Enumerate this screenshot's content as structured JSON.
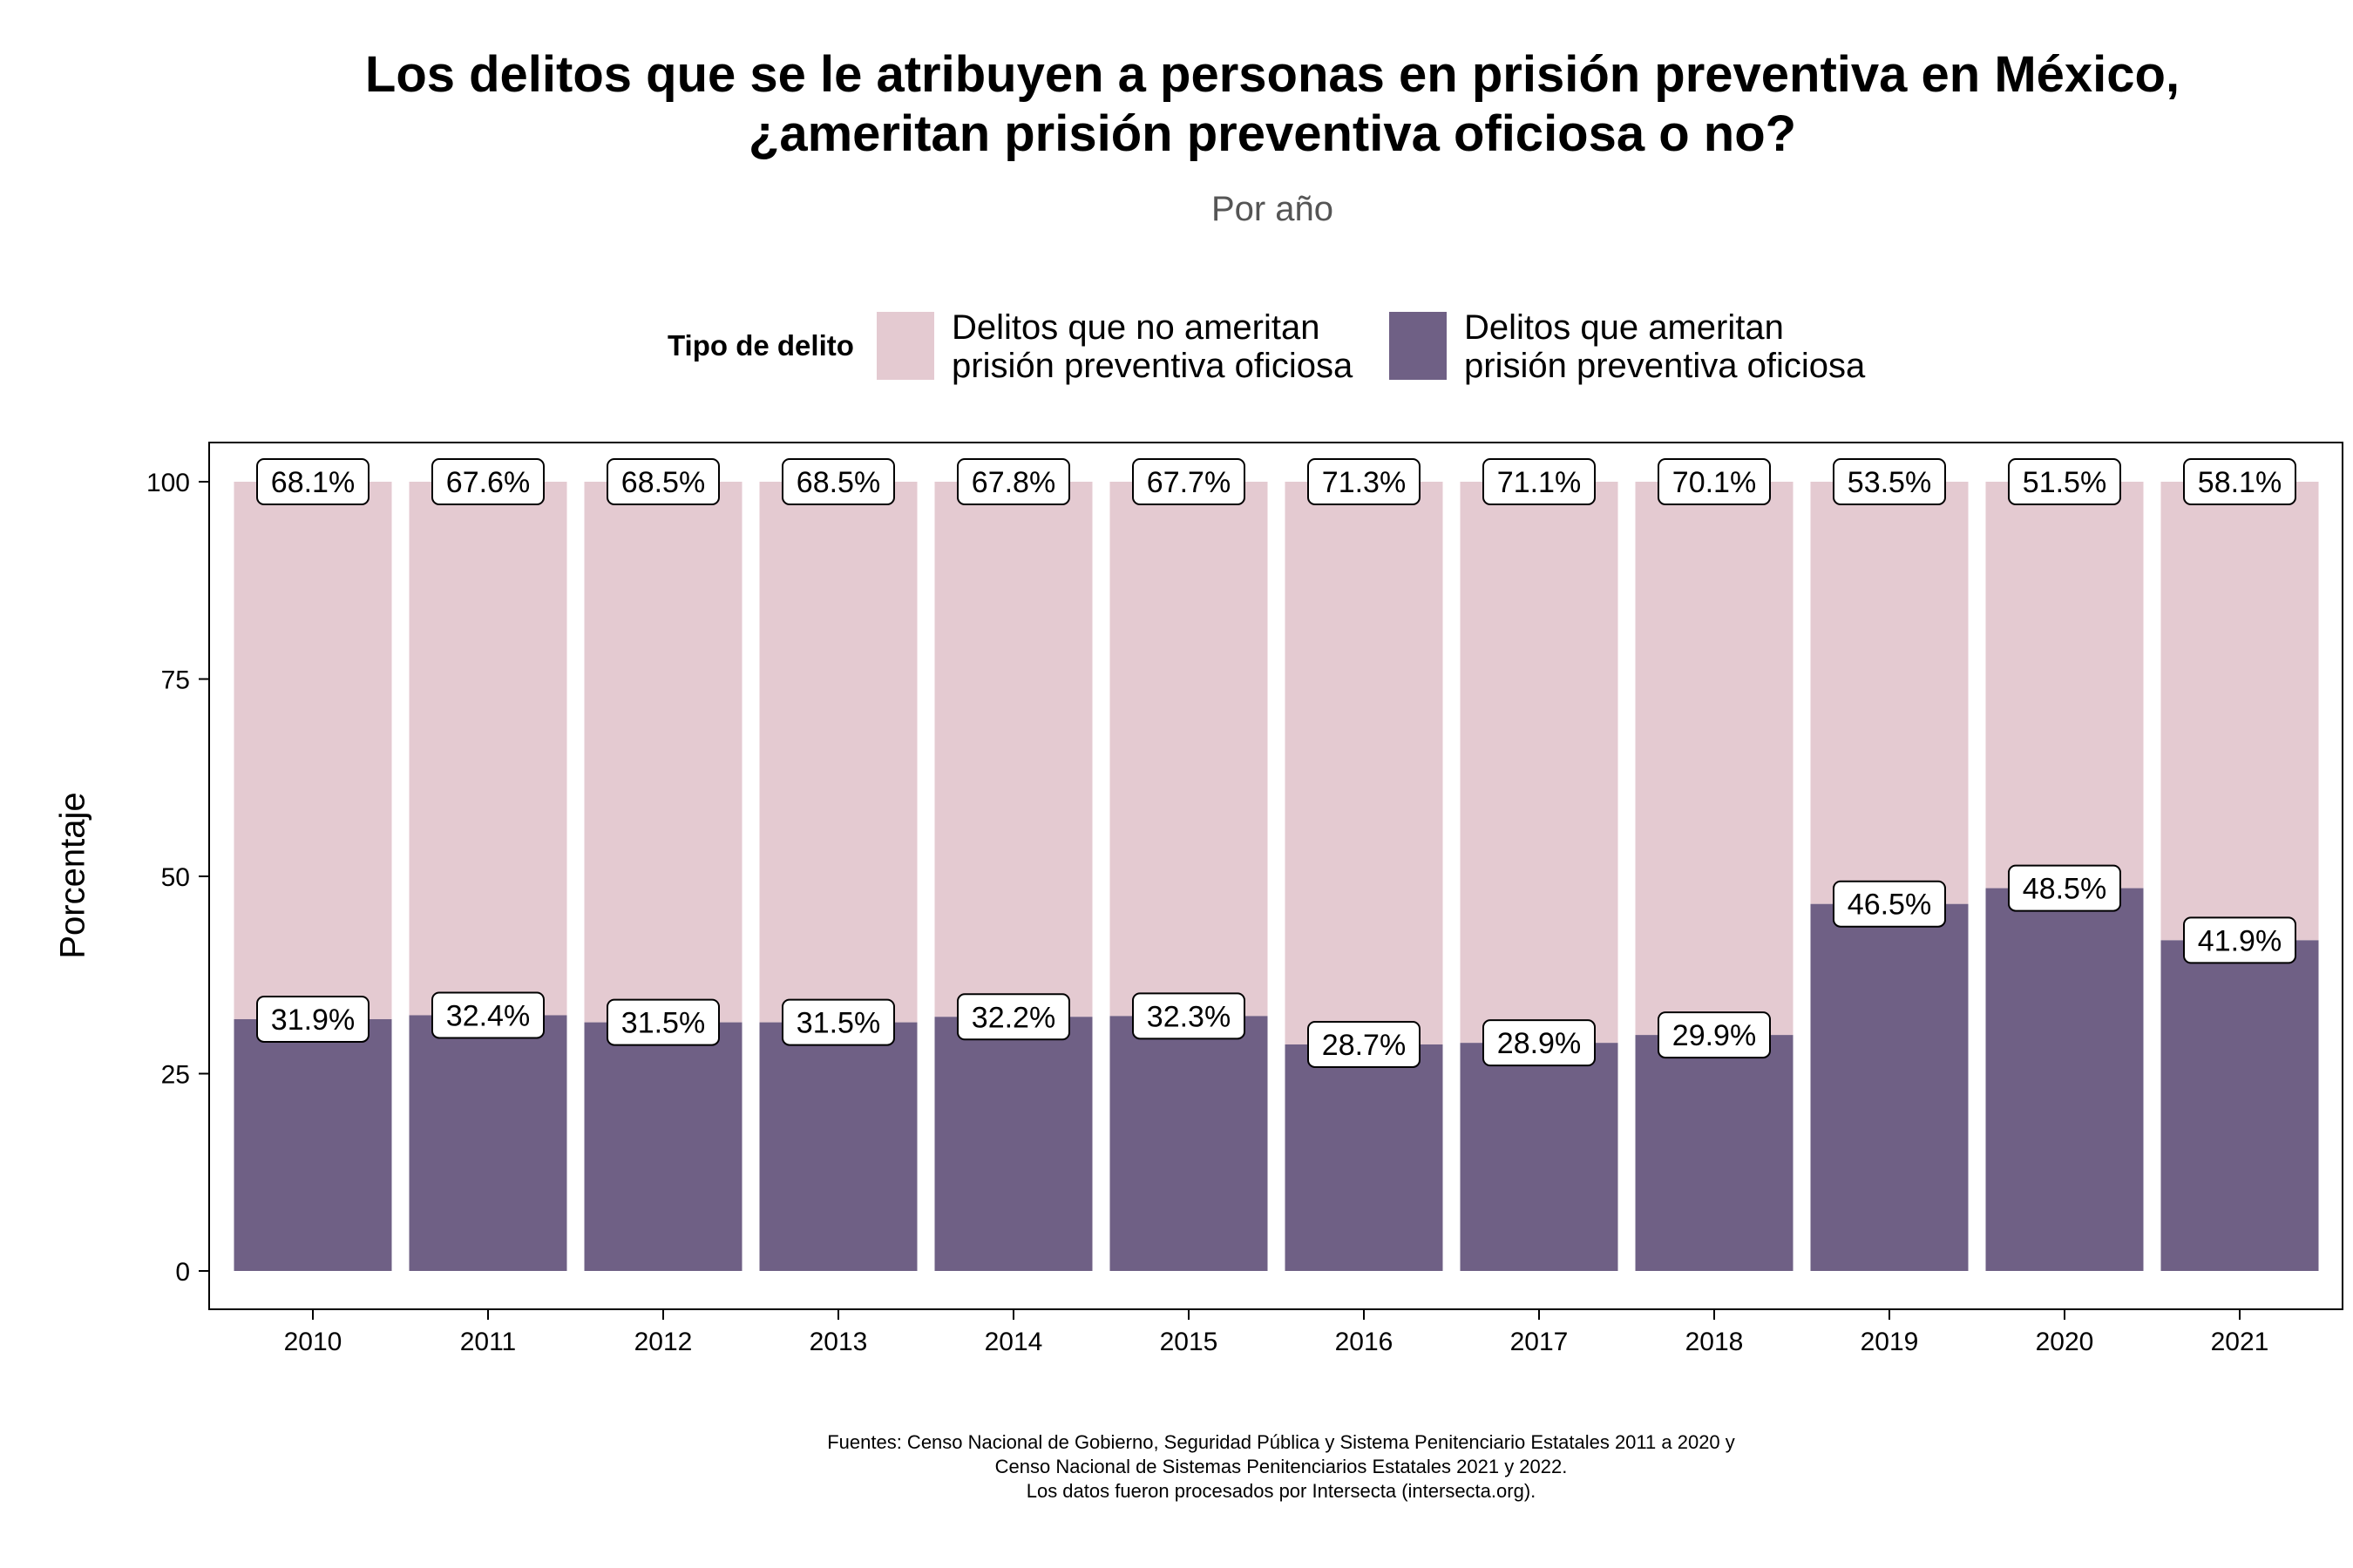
{
  "title_lines": [
    "Los delitos que se le atribuyen a personas en prisión preventiva en México,",
    "¿ameritan prisión preventiva oficiosa o no?"
  ],
  "subtitle": "Por año",
  "legend": {
    "title": "Tipo de delito",
    "items": [
      {
        "label": "Delitos que no ameritan\nprisión preventiva oficiosa",
        "color": "#e4cad1"
      },
      {
        "label": "Delitos que ameritan\nprisión preventiva oficiosa",
        "color": "#6f6085"
      }
    ]
  },
  "footer_lines": [
    "Fuentes: Censo Nacional de Gobierno, Seguridad Pública y Sistema Penitenciario Estatales 2011 a 2020 y",
    "Censo Nacional de Sistemas Penitenciarios Estatales 2021 y 2022.",
    "Los datos fueron procesados por Intersecta (intersecta.org)."
  ],
  "chart_data": {
    "type": "bar",
    "stacked": true,
    "title": "Los delitos que se le atribuyen a personas en prisión preventiva en México, ¿ameritan prisión preventiva oficiosa o no?",
    "subtitle": "Por año",
    "xlabel": "",
    "ylabel": "Porcentaje",
    "ylim": [
      0,
      100
    ],
    "yticks": [
      0,
      25,
      50,
      75,
      100
    ],
    "categories": [
      "2010",
      "2011",
      "2012",
      "2013",
      "2014",
      "2015",
      "2016",
      "2017",
      "2018",
      "2019",
      "2020",
      "2021"
    ],
    "series": [
      {
        "name": "Delitos que ameritan prisión preventiva oficiosa",
        "color": "#6f6085",
        "values": [
          31.9,
          32.4,
          31.5,
          31.5,
          32.2,
          32.3,
          28.7,
          28.9,
          29.9,
          46.5,
          48.5,
          41.9
        ],
        "labels": [
          "31.9%",
          "32.4%",
          "31.5%",
          "31.5%",
          "32.2%",
          "32.3%",
          "28.7%",
          "28.9%",
          "29.9%",
          "46.5%",
          "48.5%",
          "41.9%"
        ]
      },
      {
        "name": "Delitos que no ameritan prisión preventiva oficiosa",
        "color": "#e4cad1",
        "values": [
          68.1,
          67.6,
          68.5,
          68.5,
          67.8,
          67.7,
          71.3,
          71.1,
          70.1,
          53.5,
          51.5,
          58.1
        ],
        "labels": [
          "68.1%",
          "67.6%",
          "68.5%",
          "68.5%",
          "67.8%",
          "67.7%",
          "71.3%",
          "71.1%",
          "70.1%",
          "53.5%",
          "51.5%",
          "58.1%"
        ]
      }
    ],
    "grid": false,
    "legend_position": "top"
  }
}
